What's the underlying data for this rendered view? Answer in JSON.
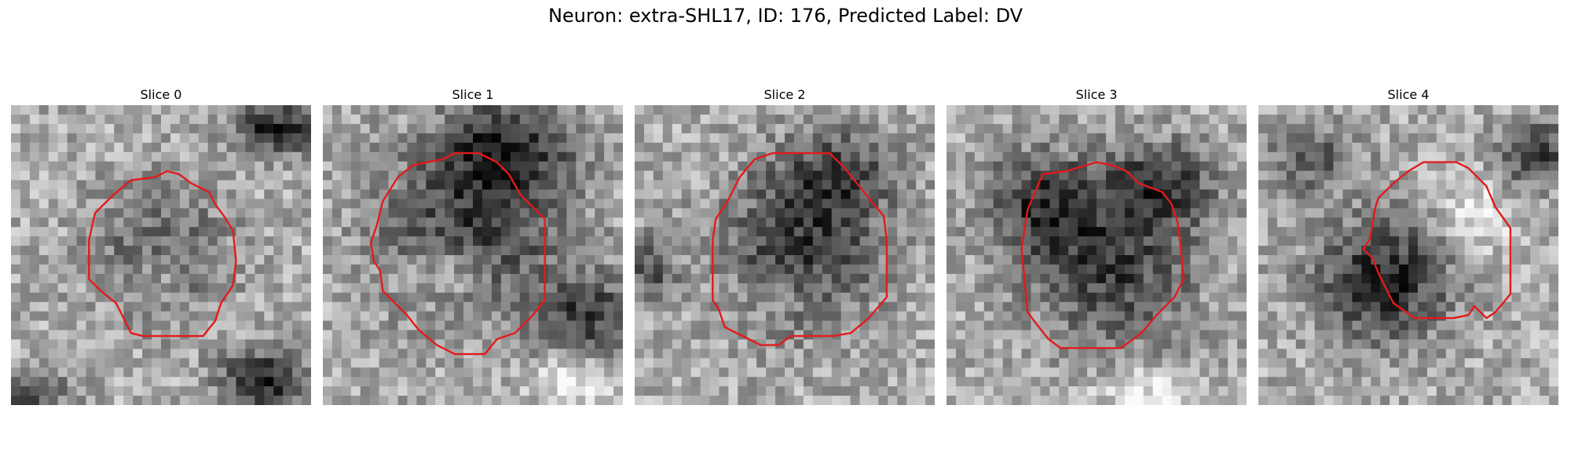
{
  "figure": {
    "title": "Neuron: extra-SHL17, ID: 176, Predicted Label: DV",
    "contour_color": "#e31a1c"
  },
  "panels": [
    {
      "title": "Slice 0"
    },
    {
      "title": "Slice 1"
    },
    {
      "title": "Slice 2"
    },
    {
      "title": "Slice 3"
    },
    {
      "title": "Slice 4"
    }
  ]
}
